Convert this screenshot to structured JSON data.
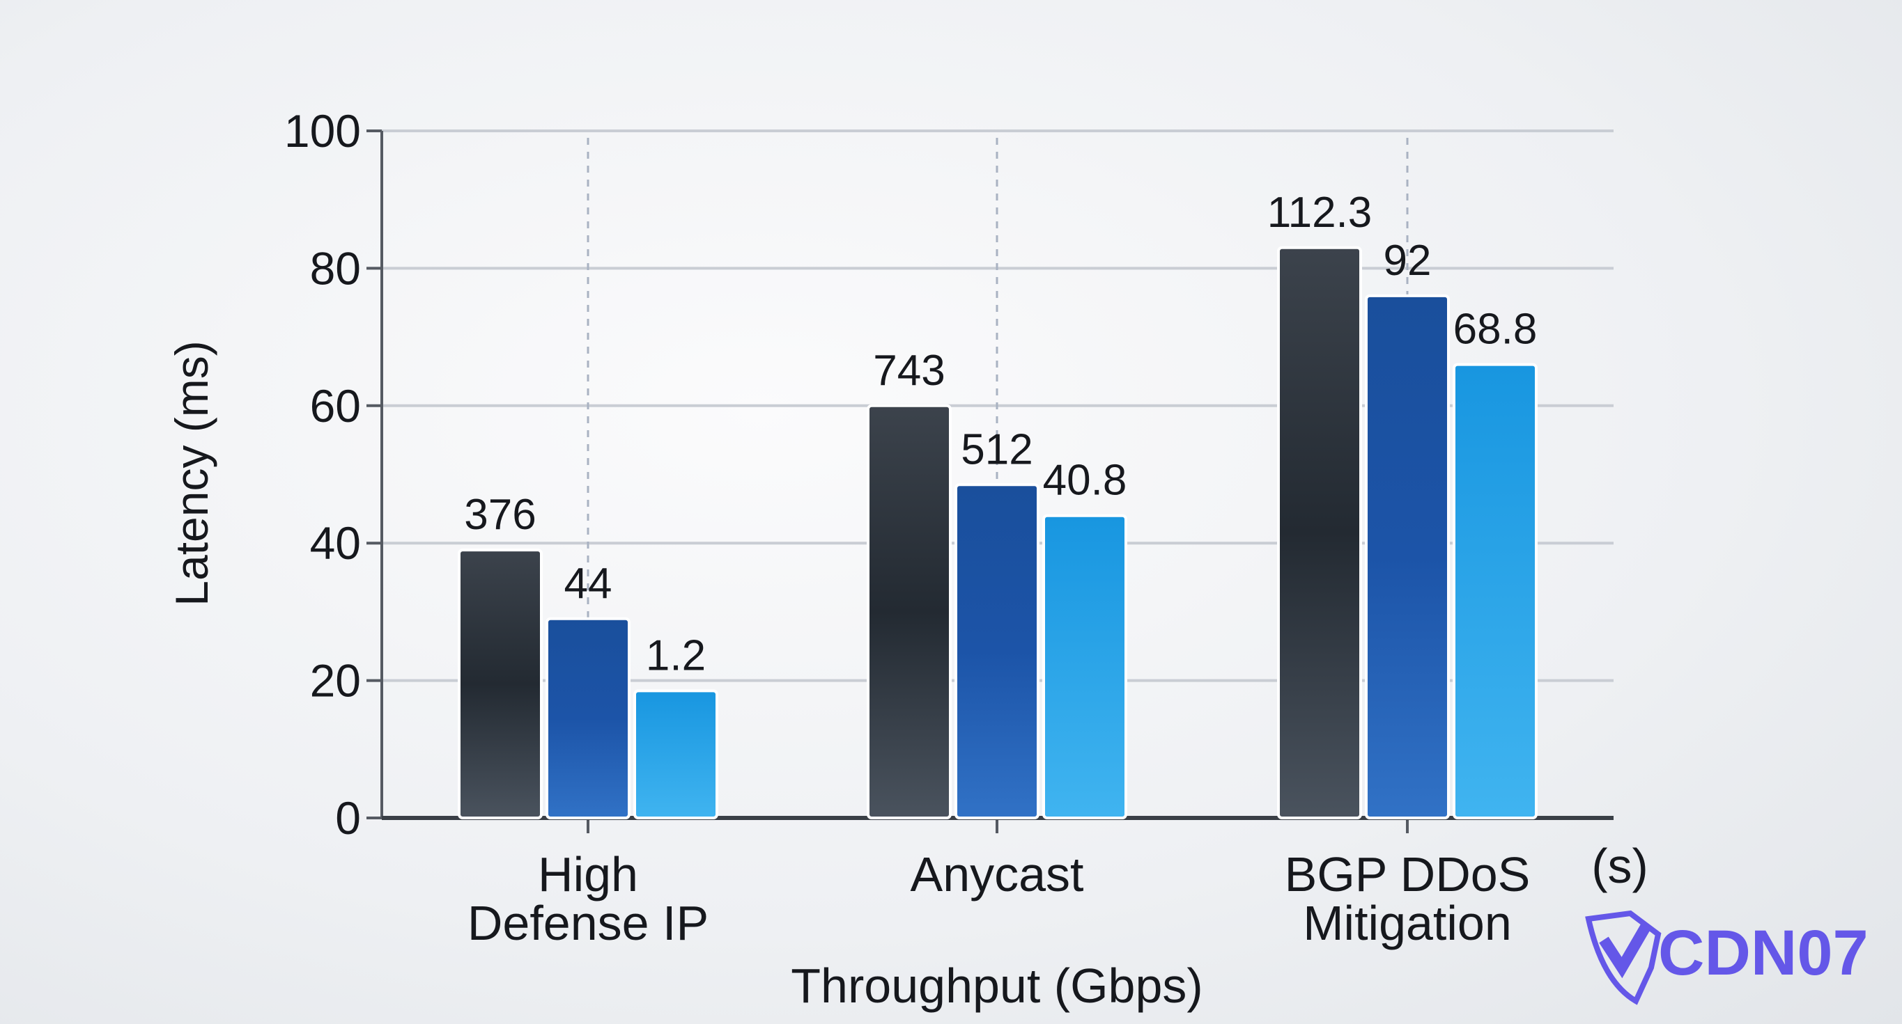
{
  "chart_data": {
    "type": "bar",
    "title": "",
    "xlabel": "Throughput (Gbps)",
    "ylabel": "Latency (ms)",
    "x_unit_note": "(s)",
    "ylim": [
      0,
      100
    ],
    "yticks": [
      0,
      20,
      40,
      60,
      80,
      100
    ],
    "grid": true,
    "categories": [
      "High\nDefense IP",
      "Anycast",
      "BGP DDoS\nMitigation"
    ],
    "series": [
      {
        "color": "#2a3038",
        "values": [
          39,
          60,
          83
        ],
        "labels": [
          "376",
          "743",
          "112.3"
        ]
      },
      {
        "color": "#1a52a8",
        "values": [
          29,
          48.5,
          76
        ],
        "labels": [
          "44",
          "512",
          "92"
        ]
      },
      {
        "color": "#22a0e6",
        "values": [
          18.5,
          44,
          66
        ],
        "labels": [
          "1.2",
          "40.8",
          "68.8"
        ]
      }
    ]
  },
  "watermark": "CDN07",
  "colors": {
    "watermark": "#6457e8"
  }
}
